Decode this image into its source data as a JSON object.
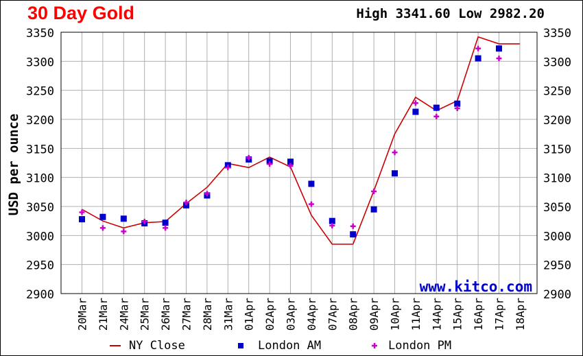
{
  "header": {
    "title": "30 Day Gold",
    "high_label": "High",
    "high_value": "3341.60",
    "low_label": "Low",
    "low_value": "2982.20"
  },
  "watermark": "www.kitco.com",
  "colors": {
    "title": "#ff0000",
    "ny_close": "#cc0000",
    "london_am": "#0000cc",
    "london_pm": "#cc00cc",
    "watermark": "#0000cc",
    "grid": "#b0b0b0"
  },
  "chart_data": {
    "type": "line",
    "title": "30 Day Gold",
    "xlabel": "",
    "ylabel": "USD per ounce",
    "ylim": [
      2900,
      3350
    ],
    "yticks": [
      2900,
      2950,
      3000,
      3050,
      3100,
      3150,
      3200,
      3250,
      3300,
      3350
    ],
    "grid": true,
    "legend_position": "bottom",
    "categories": [
      "20Mar",
      "21Mar",
      "24Mar",
      "25Mar",
      "26Mar",
      "27Mar",
      "28Mar",
      "31Mar",
      "01Apr",
      "02Apr",
      "03Apr",
      "04Apr",
      "07Apr",
      "08Apr",
      "09Apr",
      "10Apr",
      "11Apr",
      "14Apr",
      "15Apr",
      "16Apr",
      "17Apr",
      "18Apr"
    ],
    "series": [
      {
        "name": "NY Close",
        "marker": "line",
        "values": [
          3045,
          3025,
          3013,
          3022,
          3024,
          3055,
          3083,
          3124,
          3117,
          3135,
          3118,
          3035,
          2985,
          2985,
          3077,
          3175,
          3238,
          3215,
          3232,
          3342,
          3330,
          3330
        ]
      },
      {
        "name": "London AM",
        "marker": "square",
        "values": [
          3028,
          3032,
          3029,
          3021,
          3022,
          3052,
          3069,
          3121,
          3131,
          3128,
          3127,
          3089,
          3025,
          3002,
          3045,
          3107,
          3213,
          3220,
          3227,
          3305,
          3322,
          null
        ]
      },
      {
        "name": "London PM",
        "marker": "plus",
        "values": [
          3040,
          3013,
          3007,
          3024,
          3013,
          3057,
          3072,
          3117,
          3134,
          3123,
          3120,
          3054,
          3017,
          3016,
          3076,
          3143,
          3228,
          3205,
          3219,
          3322,
          3305,
          null
        ]
      }
    ]
  }
}
